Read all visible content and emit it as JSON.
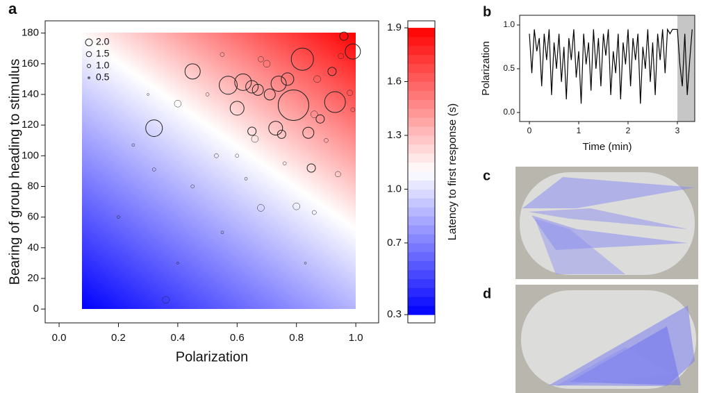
{
  "chart_data": [
    {
      "type": "scatter",
      "panel_label": "a",
      "x_label": "Polarization",
      "y_label": "Bearing of group heading to stimulus",
      "xlim": [
        -0.047,
        1.077
      ],
      "ylim": [
        -9,
        188
      ],
      "xticks": [
        {
          "value": 0,
          "label": "0.0"
        },
        0.2,
        0.4,
        0.6,
        0.8,
        {
          "value": 1,
          "label": "1.0"
        }
      ],
      "yticks": [
        0,
        20,
        40,
        60,
        80,
        100,
        120,
        140,
        160,
        180
      ],
      "size_legend": [
        {
          "value": 2,
          "label": "2.0"
        },
        1.5,
        {
          "value": 1,
          "label": "1.0"
        },
        0.5
      ],
      "color": "#222222",
      "x": [
        0.99,
        0.96,
        0.82,
        0.79,
        0.93,
        0.45,
        0.32,
        0.57,
        0.62,
        0.65,
        0.6,
        0.67,
        0.71,
        0.74,
        0.77,
        0.73,
        0.65,
        0.66,
        0.75,
        0.84,
        0.85,
        0.8,
        0.68,
        0.4,
        0.36,
        0.86,
        0.53,
        0.32,
        0.88,
        0.86,
        0.94,
        0.7,
        0.55,
        0.5,
        0.68,
        0.92,
        0.98,
        0.87,
        0.6,
        0.45,
        0.25,
        0.2,
        0.55,
        0.9,
        0.95,
        0.76,
        0.63,
        0.4,
        0.3,
        0.83,
        0.99
      ],
      "values": [
        168,
        178,
        163,
        133,
        135,
        155,
        118,
        146,
        148,
        145,
        131,
        143,
        140,
        147,
        150,
        118,
        116,
        111,
        114,
        115,
        92,
        67,
        66,
        134,
        6,
        63,
        100,
        91,
        124,
        127,
        88,
        160,
        166,
        140,
        163,
        155,
        141,
        150,
        100,
        80,
        107,
        60,
        50,
        110,
        165,
        95,
        85,
        30,
        140,
        30,
        130
      ],
      "sizes": [
        4.4,
        2.4,
        6.4,
        8.8,
        6,
        4.4,
        4.8,
        5.2,
        4.8,
        3.6,
        4,
        3.2,
        3.2,
        4.4,
        3.6,
        4,
        2.4,
        2,
        2.4,
        3.2,
        2.4,
        2,
        2,
        2,
        2,
        1.2,
        1.2,
        1,
        2.4,
        2,
        1.6,
        2,
        1.2,
        1,
        1.6,
        2.4,
        1.6,
        2,
        1,
        1,
        0.8,
        0.8,
        0.8,
        1.2,
        1.6,
        1,
        0.8,
        0.6,
        0.6,
        0.6,
        1.2
      ]
    },
    {
      "type": "colorbar",
      "label": "Latency to first response (s)",
      "ylim": [
        0.254,
        1.939
      ],
      "yticks": [
        0.3,
        0.7,
        {
          "value": 1,
          "label": "1.0"
        },
        1.3,
        1.6,
        1.9
      ],
      "colors": [
        "#0000ff",
        "#ffffff",
        "#ff0000"
      ]
    },
    {
      "type": "line",
      "panel_label": "b",
      "x_label": "Time (min)",
      "y_label": "Polarization",
      "xlim": [
        -0.197,
        3.352
      ],
      "ylim": [
        -0.103,
        1.111
      ],
      "xticks": [
        0,
        1,
        2,
        3
      ],
      "yticks": [
        {
          "value": 0,
          "label": "0.0"
        },
        0.5,
        {
          "value": 1,
          "label": "1.0"
        }
      ],
      "shade": [
        3,
        3.352
      ],
      "color": "#000000",
      "x": [
        0,
        0.05,
        0.1,
        0.15,
        0.2,
        0.25,
        0.3,
        0.35,
        0.4,
        0.45,
        0.5,
        0.55,
        0.6,
        0.65,
        0.7,
        0.75,
        0.8,
        0.85,
        0.9,
        0.95,
        1,
        1.05,
        1.1,
        1.15,
        1.2,
        1.25,
        1.3,
        1.35,
        1.4,
        1.45,
        1.5,
        1.55,
        1.6,
        1.65,
        1.7,
        1.75,
        1.8,
        1.85,
        1.9,
        1.95,
        2,
        2.05,
        2.1,
        2.15,
        2.2,
        2.25,
        2.3,
        2.35,
        2.4,
        2.45,
        2.5,
        2.55,
        2.6,
        2.65,
        2.7,
        2.75,
        2.8,
        2.85,
        2.9,
        2.95,
        3,
        3.05,
        3.1,
        3.15,
        3.2,
        3.25,
        3.3
      ],
      "values": [
        0.9,
        0.45,
        0.95,
        0.7,
        0.85,
        0.3,
        0.9,
        0.6,
        0.95,
        0.2,
        0.8,
        0.5,
        0.9,
        0.35,
        0.75,
        0.15,
        0.85,
        0.6,
        0.95,
        0.4,
        0.7,
        0.1,
        0.9,
        0.55,
        0.8,
        0.25,
        0.95,
        0.5,
        0.85,
        0.3,
        0.9,
        0.65,
        0.95,
        0.2,
        0.7,
        0.45,
        0.9,
        0.15,
        0.8,
        0.55,
        0.95,
        0.3,
        0.85,
        0.6,
        0.9,
        0.1,
        0.75,
        0.5,
        0.95,
        0.35,
        0.8,
        0.2,
        0.9,
        0.6,
        0.95,
        0.45,
        0.95,
        0.9,
        0.95,
        0.95,
        0.95,
        0.55,
        0.3,
        0.9,
        0.2,
        0.6,
        0.95
      ]
    }
  ],
  "images": [
    {
      "panel_label": "c"
    },
    {
      "panel_label": "d"
    }
  ]
}
